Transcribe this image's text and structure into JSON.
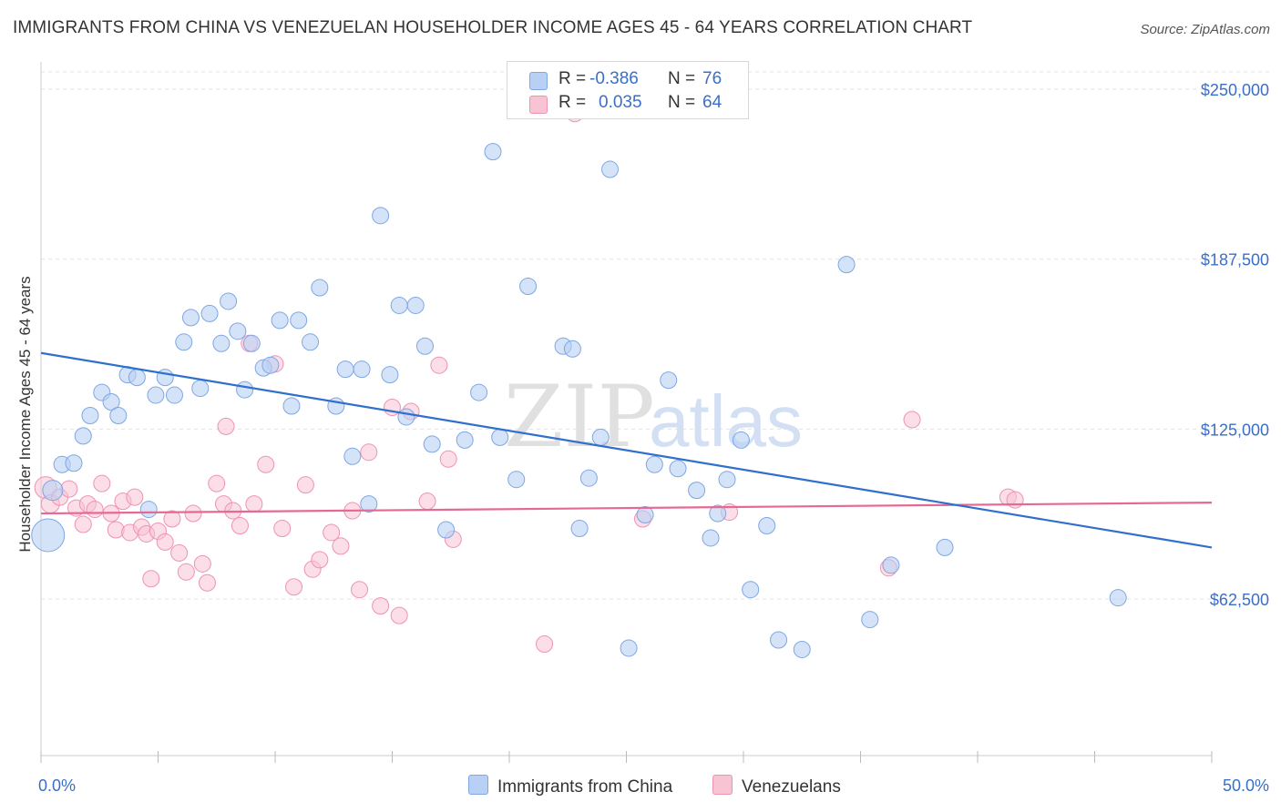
{
  "title": "IMMIGRANTS FROM CHINA VS VENEZUELAN HOUSEHOLDER INCOME AGES 45 - 64 YEARS CORRELATION CHART",
  "source": "Source: ZipAtlas.com",
  "watermark": {
    "zip": "ZIP",
    "atlas": "atlas"
  },
  "legend": {
    "rows": [
      {
        "r_label": "R =",
        "r_value": "-0.386",
        "n_label": "N =",
        "n_value": "76"
      },
      {
        "r_label": "R =",
        "r_value": "0.035",
        "n_label": "N =",
        "n_value": "64"
      }
    ]
  },
  "bottom_legend": {
    "china": "Immigrants from China",
    "venezuelans": "Venezuelans"
  },
  "colors": {
    "china_fill": "#b7d0f3",
    "china_stroke": "#7ea7e3",
    "china_line": "#2f6fce",
    "ven_fill": "#f8c3d3",
    "ven_stroke": "#ee93b1",
    "ven_line": "#e46a95",
    "axis_label": "#3a6fc9",
    "grid": "#e3e3e3"
  },
  "chart_data": {
    "type": "scatter",
    "title": "IMMIGRANTS FROM CHINA VS VENEZUELAN HOUSEHOLDER INCOME AGES 45 - 64 YEARS CORRELATION CHART",
    "xlabel": "",
    "ylabel": "Householder Income Ages 45 - 64 years",
    "xlim": [
      0,
      50
    ],
    "ylim": [
      5000,
      260000
    ],
    "x_tick_labels": [
      "0.0%",
      "50.0%"
    ],
    "y_ticks": [
      62500,
      125000,
      187500,
      250000
    ],
    "y_tick_labels": [
      "$62,500",
      "$125,000",
      "$187,500",
      "$250,000"
    ],
    "grid": true,
    "legend_position": "top-center",
    "series": [
      {
        "name": "Immigrants from China",
        "r": -0.386,
        "n": 76,
        "trend": {
          "x": [
            0,
            50
          ],
          "y": [
            153000,
            81500
          ]
        },
        "points": [
          [
            0.3,
            86000,
            18
          ],
          [
            0.5,
            102500,
            11
          ],
          [
            0.9,
            112000,
            9
          ],
          [
            1.4,
            112500,
            9
          ],
          [
            1.8,
            122500,
            9
          ],
          [
            2.1,
            130000,
            9
          ],
          [
            2.6,
            138500,
            9
          ],
          [
            3.0,
            135000,
            9
          ],
          [
            3.3,
            130000,
            9
          ],
          [
            3.7,
            145000,
            9
          ],
          [
            4.1,
            144000,
            9
          ],
          [
            4.6,
            95500,
            9
          ],
          [
            4.9,
            137500,
            9
          ],
          [
            5.3,
            144000,
            9
          ],
          [
            5.7,
            137500,
            9
          ],
          [
            6.1,
            157000,
            9
          ],
          [
            6.4,
            166000,
            9
          ],
          [
            6.8,
            140000,
            9
          ],
          [
            7.2,
            167500,
            9
          ],
          [
            7.7,
            156500,
            9
          ],
          [
            8.0,
            172000,
            9
          ],
          [
            8.4,
            161000,
            9
          ],
          [
            8.7,
            139500,
            9
          ],
          [
            9.0,
            156500,
            9
          ],
          [
            9.5,
            147500,
            9
          ],
          [
            9.8,
            148500,
            9
          ],
          [
            10.2,
            165000,
            9
          ],
          [
            10.7,
            133500,
            9
          ],
          [
            11.0,
            165000,
            9
          ],
          [
            11.5,
            157000,
            9
          ],
          [
            11.9,
            177000,
            9
          ],
          [
            12.6,
            133500,
            9
          ],
          [
            13.0,
            147000,
            9
          ],
          [
            13.3,
            115000,
            9
          ],
          [
            13.7,
            147000,
            9
          ],
          [
            14.0,
            97500,
            9
          ],
          [
            14.5,
            203500,
            9
          ],
          [
            14.9,
            145000,
            9
          ],
          [
            15.3,
            170500,
            9
          ],
          [
            15.6,
            129500,
            9
          ],
          [
            16.0,
            170500,
            9
          ],
          [
            16.4,
            155500,
            9
          ],
          [
            16.7,
            119500,
            9
          ],
          [
            17.3,
            88000,
            9
          ],
          [
            18.1,
            121000,
            9
          ],
          [
            18.7,
            138500,
            9
          ],
          [
            19.3,
            227000,
            9
          ],
          [
            19.6,
            122000,
            9
          ],
          [
            20.3,
            106500,
            9
          ],
          [
            20.8,
            177500,
            9
          ],
          [
            22.3,
            155500,
            9
          ],
          [
            22.7,
            154500,
            9
          ],
          [
            23.0,
            88500,
            9
          ],
          [
            23.4,
            107000,
            9
          ],
          [
            23.9,
            122000,
            9
          ],
          [
            24.3,
            220500,
            9
          ],
          [
            25.1,
            44500,
            9
          ],
          [
            25.8,
            93500,
            9
          ],
          [
            26.2,
            112000,
            9
          ],
          [
            26.8,
            143000,
            9
          ],
          [
            27.2,
            110500,
            9
          ],
          [
            28.0,
            102500,
            9
          ],
          [
            28.6,
            85000,
            9
          ],
          [
            28.9,
            94000,
            9
          ],
          [
            29.3,
            106500,
            9
          ],
          [
            29.9,
            121000,
            9
          ],
          [
            30.3,
            66000,
            9
          ],
          [
            31.0,
            89500,
            9
          ],
          [
            31.5,
            47500,
            9
          ],
          [
            32.5,
            44000,
            9
          ],
          [
            34.4,
            185500,
            9
          ],
          [
            35.4,
            55000,
            9
          ],
          [
            36.3,
            75000,
            9
          ],
          [
            38.6,
            81500,
            9
          ],
          [
            46.0,
            63000,
            9
          ]
        ]
      },
      {
        "name": "Venezuelans",
        "r": 0.035,
        "n": 64,
        "trend": {
          "x": [
            0,
            50
          ],
          "y": [
            94000,
            98000
          ]
        },
        "points": [
          [
            0.2,
            103500,
            12
          ],
          [
            0.4,
            97500,
            10
          ],
          [
            0.8,
            100000,
            9
          ],
          [
            1.2,
            103000,
            9
          ],
          [
            1.5,
            96000,
            9
          ],
          [
            1.8,
            90000,
            9
          ],
          [
            2.0,
            97500,
            9
          ],
          [
            2.3,
            95500,
            9
          ],
          [
            2.6,
            105000,
            9
          ],
          [
            3.0,
            94000,
            9
          ],
          [
            3.2,
            88000,
            9
          ],
          [
            3.5,
            98500,
            9
          ],
          [
            3.8,
            87000,
            9
          ],
          [
            4.0,
            100000,
            9
          ],
          [
            4.3,
            89000,
            9
          ],
          [
            4.5,
            86500,
            9
          ],
          [
            4.7,
            70000,
            9
          ],
          [
            5.0,
            87500,
            9
          ],
          [
            5.3,
            83500,
            9
          ],
          [
            5.6,
            92000,
            9
          ],
          [
            5.9,
            79500,
            9
          ],
          [
            6.2,
            72500,
            9
          ],
          [
            6.5,
            94000,
            9
          ],
          [
            6.9,
            75500,
            9
          ],
          [
            7.1,
            68500,
            9
          ],
          [
            7.5,
            105000,
            9
          ],
          [
            7.8,
            97500,
            9
          ],
          [
            7.9,
            126000,
            9
          ],
          [
            8.2,
            95000,
            9
          ],
          [
            8.5,
            89500,
            9
          ],
          [
            8.9,
            156500,
            9
          ],
          [
            9.1,
            97500,
            9
          ],
          [
            9.6,
            112000,
            9
          ],
          [
            10.0,
            149000,
            9
          ],
          [
            10.3,
            88500,
            9
          ],
          [
            10.8,
            67000,
            9
          ],
          [
            11.3,
            104500,
            9
          ],
          [
            11.6,
            73500,
            9
          ],
          [
            11.9,
            77000,
            9
          ],
          [
            12.4,
            87000,
            9
          ],
          [
            12.8,
            82000,
            9
          ],
          [
            13.3,
            95000,
            9
          ],
          [
            13.6,
            66000,
            9
          ],
          [
            14.0,
            116500,
            9
          ],
          [
            14.5,
            60000,
            9
          ],
          [
            15.0,
            133000,
            9
          ],
          [
            15.3,
            56500,
            9
          ],
          [
            15.8,
            131500,
            9
          ],
          [
            16.5,
            98500,
            9
          ],
          [
            17.0,
            148500,
            9
          ],
          [
            17.4,
            114000,
            9
          ],
          [
            17.6,
            84500,
            9
          ],
          [
            21.5,
            46000,
            9
          ],
          [
            22.8,
            241000,
            9
          ],
          [
            25.7,
            92000,
            9
          ],
          [
            29.4,
            94500,
            9
          ],
          [
            36.2,
            74000,
            9
          ],
          [
            37.2,
            128500,
            9
          ],
          [
            41.3,
            100000,
            9
          ],
          [
            41.6,
            99000,
            9
          ]
        ]
      }
    ]
  }
}
